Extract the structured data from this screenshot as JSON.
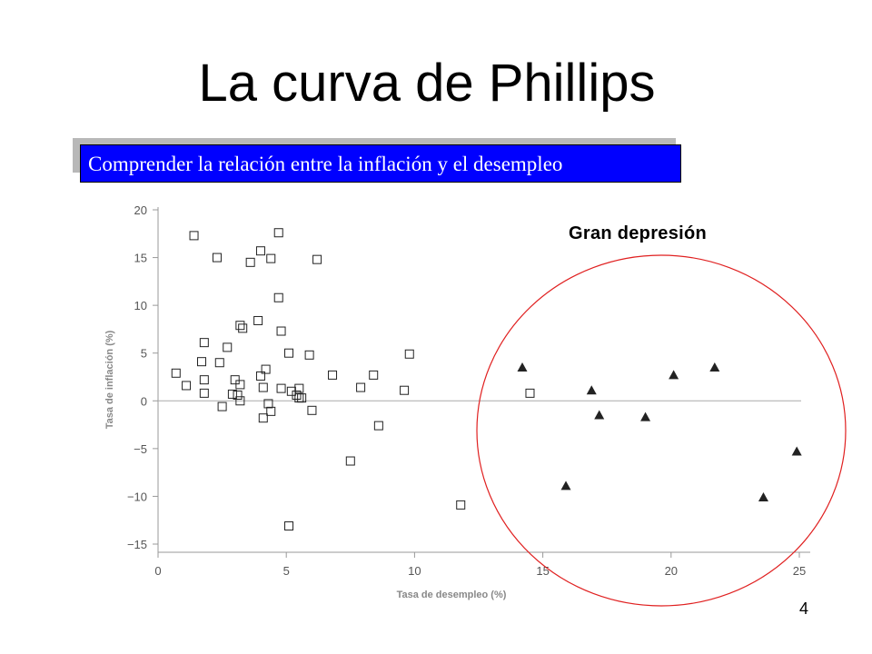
{
  "slide": {
    "title": "La curva de Phillips",
    "subtitle": "Comprender la relación entre la inflación y el desempleo",
    "page_number": "4"
  },
  "chart_data": {
    "type": "scatter",
    "xlabel": "Tasa de desempleo (%)",
    "ylabel": "Tasa de inflación (%)",
    "xlim": [
      0,
      25
    ],
    "ylim": [
      -15,
      20
    ],
    "xticks": [
      0,
      5,
      10,
      15,
      20,
      25
    ],
    "yticks": [
      20,
      15,
      10,
      5,
      0,
      -5,
      -10,
      -15
    ],
    "yticklabels": [
      "20",
      "15",
      "10",
      "5",
      "0",
      "−5",
      "−10",
      "−15"
    ],
    "annotations": [
      {
        "text": "Gran depresión"
      }
    ],
    "colors": {
      "circle": "#e02020",
      "zero_line": "#aaaaaa",
      "markers": "#222222"
    },
    "series": [
      {
        "marker": "square",
        "points": [
          [
            1.4,
            17.3
          ],
          [
            2.3,
            15.0
          ],
          [
            3.6,
            14.5
          ],
          [
            4.0,
            15.7
          ],
          [
            4.4,
            14.9
          ],
          [
            4.7,
            17.6
          ],
          [
            6.2,
            14.8
          ],
          [
            4.7,
            10.8
          ],
          [
            3.2,
            7.9
          ],
          [
            3.3,
            7.6
          ],
          [
            3.9,
            8.4
          ],
          [
            4.8,
            7.3
          ],
          [
            1.8,
            6.1
          ],
          [
            2.7,
            5.6
          ],
          [
            5.1,
            5.0
          ],
          [
            5.9,
            4.8
          ],
          [
            9.8,
            4.9
          ],
          [
            1.7,
            4.1
          ],
          [
            2.4,
            4.0
          ],
          [
            0.7,
            2.9
          ],
          [
            1.1,
            1.6
          ],
          [
            1.8,
            2.2
          ],
          [
            3.0,
            2.2
          ],
          [
            3.2,
            1.7
          ],
          [
            4.0,
            2.6
          ],
          [
            4.2,
            3.3
          ],
          [
            4.1,
            1.4
          ],
          [
            4.8,
            1.3
          ],
          [
            5.2,
            1.0
          ],
          [
            5.5,
            1.3
          ],
          [
            5.4,
            0.6
          ],
          [
            5.6,
            0.3
          ],
          [
            5.5,
            0.3
          ],
          [
            6.8,
            2.7
          ],
          [
            7.9,
            1.4
          ],
          [
            8.4,
            2.7
          ],
          [
            9.6,
            1.1
          ],
          [
            1.8,
            0.8
          ],
          [
            2.9,
            0.7
          ],
          [
            3.1,
            0.6
          ],
          [
            3.2,
            0.0
          ],
          [
            4.3,
            -0.3
          ],
          [
            2.5,
            -0.6
          ],
          [
            4.4,
            -1.1
          ],
          [
            4.1,
            -1.8
          ],
          [
            6.0,
            -1.0
          ],
          [
            8.6,
            -2.6
          ],
          [
            14.5,
            0.8
          ],
          [
            7.5,
            -6.3
          ],
          [
            11.8,
            -10.9
          ],
          [
            5.1,
            -13.1
          ]
        ]
      },
      {
        "marker": "triangle",
        "points": [
          [
            14.2,
            3.5
          ],
          [
            16.9,
            1.1
          ],
          [
            17.2,
            -1.5
          ],
          [
            19.0,
            -1.7
          ],
          [
            20.1,
            2.7
          ],
          [
            21.7,
            3.5
          ],
          [
            15.9,
            -8.9
          ],
          [
            23.6,
            -10.1
          ],
          [
            24.9,
            -5.3
          ]
        ]
      }
    ]
  }
}
